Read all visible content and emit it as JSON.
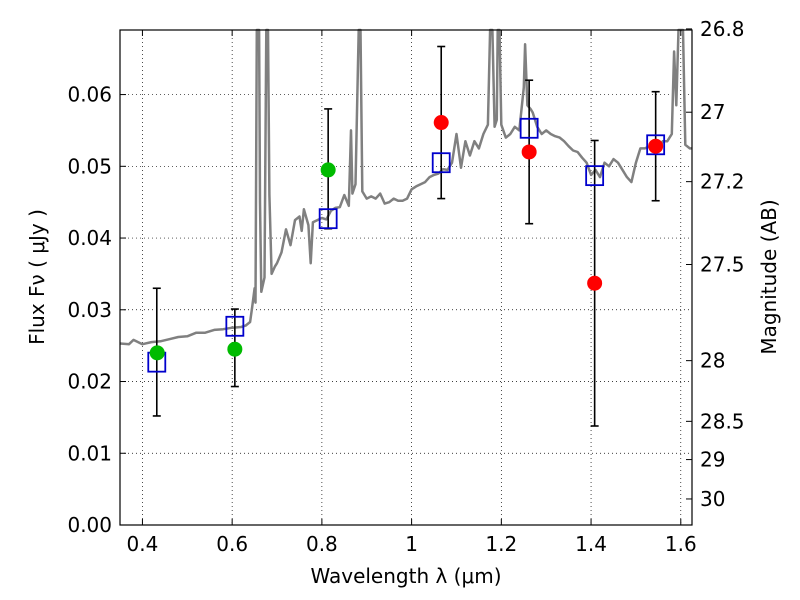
{
  "chart_data": {
    "type": "scatter",
    "xlabel": "Wavelength  λ (μm)",
    "ylabel": "Flux  Fν  ( μJy )",
    "ylabel_right": "Magnitude (AB)",
    "xlim": [
      0.35,
      1.625
    ],
    "ylim": [
      0.0,
      0.069
    ],
    "grid": true,
    "x_ticks": [
      0.4,
      0.6,
      0.8,
      1.0,
      1.2,
      1.4,
      1.6
    ],
    "x_tick_labels": [
      "0.4",
      "0.6",
      "0.8",
      "1",
      "1.2",
      "1.4",
      "1.6"
    ],
    "y_ticks": [
      0.0,
      0.01,
      0.02,
      0.03,
      0.04,
      0.05,
      0.06
    ],
    "y_tick_labels": [
      "0.00",
      "0.01",
      "0.02",
      "0.03",
      "0.04",
      "0.05",
      "0.06"
    ],
    "right_ticks": [
      {
        "flux": 0.06915,
        "label": "26.8"
      },
      {
        "flux": 0.05754,
        "label": "27"
      },
      {
        "flux": 0.04786,
        "label": "27.2"
      },
      {
        "flux": 0.03631,
        "label": "27.5"
      },
      {
        "flux": 0.02291,
        "label": "28"
      },
      {
        "flux": 0.01445,
        "label": "28.5"
      },
      {
        "flux": 0.00912,
        "label": "29"
      },
      {
        "flux": 0.00363,
        "label": "30"
      }
    ],
    "series": [
      {
        "kind": "spectrum",
        "color": "#808080",
        "points": [
          [
            0.35,
            0.0253
          ],
          [
            0.37,
            0.0252
          ],
          [
            0.38,
            0.0258
          ],
          [
            0.4,
            0.0252
          ],
          [
            0.42,
            0.0255
          ],
          [
            0.44,
            0.0256
          ],
          [
            0.46,
            0.0259
          ],
          [
            0.48,
            0.0262
          ],
          [
            0.5,
            0.0263
          ],
          [
            0.52,
            0.0268
          ],
          [
            0.54,
            0.0268
          ],
          [
            0.56,
            0.0272
          ],
          [
            0.58,
            0.0273
          ],
          [
            0.6,
            0.0275
          ],
          [
            0.62,
            0.0276
          ],
          [
            0.63,
            0.0278
          ],
          [
            0.64,
            0.0283
          ],
          [
            0.645,
            0.0305
          ],
          [
            0.65,
            0.033
          ],
          [
            0.652,
            0.031
          ],
          [
            0.655,
            0.069
          ],
          [
            0.66,
            0.069
          ],
          [
            0.662,
            0.045
          ],
          [
            0.665,
            0.0325
          ],
          [
            0.672,
            0.0345
          ],
          [
            0.676,
            0.069
          ],
          [
            0.68,
            0.069
          ],
          [
            0.683,
            0.046
          ],
          [
            0.688,
            0.035
          ],
          [
            0.695,
            0.036
          ],
          [
            0.7,
            0.0365
          ],
          [
            0.71,
            0.038
          ],
          [
            0.72,
            0.0412
          ],
          [
            0.73,
            0.039
          ],
          [
            0.74,
            0.0425
          ],
          [
            0.75,
            0.043
          ],
          [
            0.755,
            0.041
          ],
          [
            0.76,
            0.044
          ],
          [
            0.77,
            0.0418
          ],
          [
            0.775,
            0.0365
          ],
          [
            0.78,
            0.0422
          ],
          [
            0.79,
            0.0425
          ],
          [
            0.8,
            0.0428
          ],
          [
            0.81,
            0.0426
          ],
          [
            0.82,
            0.0438
          ],
          [
            0.83,
            0.0442
          ],
          [
            0.84,
            0.0443
          ],
          [
            0.85,
            0.046
          ],
          [
            0.86,
            0.0445
          ],
          [
            0.865,
            0.055
          ],
          [
            0.868,
            0.0462
          ],
          [
            0.875,
            0.0475
          ],
          [
            0.882,
            0.069
          ],
          [
            0.886,
            0.069
          ],
          [
            0.89,
            0.0465
          ],
          [
            0.9,
            0.0455
          ],
          [
            0.91,
            0.0458
          ],
          [
            0.92,
            0.0455
          ],
          [
            0.93,
            0.0462
          ],
          [
            0.94,
            0.0448
          ],
          [
            0.95,
            0.045
          ],
          [
            0.96,
            0.0455
          ],
          [
            0.97,
            0.0452
          ],
          [
            0.98,
            0.0452
          ],
          [
            0.99,
            0.0455
          ],
          [
            1.0,
            0.0468
          ],
          [
            1.01,
            0.0472
          ],
          [
            1.02,
            0.0475
          ],
          [
            1.03,
            0.0478
          ],
          [
            1.04,
            0.0485
          ],
          [
            1.05,
            0.0488
          ],
          [
            1.06,
            0.049
          ],
          [
            1.07,
            0.0496
          ],
          [
            1.08,
            0.0495
          ],
          [
            1.09,
            0.0505
          ],
          [
            1.1,
            0.0545
          ],
          [
            1.11,
            0.0498
          ],
          [
            1.12,
            0.0535
          ],
          [
            1.13,
            0.0515
          ],
          [
            1.14,
            0.0535
          ],
          [
            1.15,
            0.0525
          ],
          [
            1.16,
            0.0545
          ],
          [
            1.17,
            0.0558
          ],
          [
            1.175,
            0.069
          ],
          [
            1.18,
            0.069
          ],
          [
            1.185,
            0.0555
          ],
          [
            1.19,
            0.0565
          ],
          [
            1.192,
            0.069
          ],
          [
            1.196,
            0.069
          ],
          [
            1.2,
            0.0558
          ],
          [
            1.21,
            0.054
          ],
          [
            1.22,
            0.0545
          ],
          [
            1.23,
            0.0555
          ],
          [
            1.24,
            0.055
          ],
          [
            1.25,
            0.061
          ],
          [
            1.253,
            0.067
          ],
          [
            1.258,
            0.0585
          ],
          [
            1.265,
            0.058
          ],
          [
            1.27,
            0.0575
          ],
          [
            1.28,
            0.0555
          ],
          [
            1.29,
            0.0545
          ],
          [
            1.3,
            0.055
          ],
          [
            1.31,
            0.0545
          ],
          [
            1.32,
            0.0542
          ],
          [
            1.33,
            0.054
          ],
          [
            1.34,
            0.0535
          ],
          [
            1.35,
            0.0528
          ],
          [
            1.36,
            0.0522
          ],
          [
            1.37,
            0.052
          ],
          [
            1.38,
            0.0512
          ],
          [
            1.39,
            0.0505
          ],
          [
            1.4,
            0.0488
          ],
          [
            1.41,
            0.0495
          ],
          [
            1.42,
            0.0485
          ],
          [
            1.43,
            0.0505
          ],
          [
            1.44,
            0.05
          ],
          [
            1.45,
            0.051
          ],
          [
            1.46,
            0.0505
          ],
          [
            1.47,
            0.0495
          ],
          [
            1.48,
            0.0485
          ],
          [
            1.49,
            0.0478
          ],
          [
            1.5,
            0.0505
          ],
          [
            1.51,
            0.0525
          ],
          [
            1.52,
            0.0525
          ],
          [
            1.53,
            0.0528
          ],
          [
            1.54,
            0.0525
          ],
          [
            1.55,
            0.0522
          ],
          [
            1.56,
            0.0535
          ],
          [
            1.57,
            0.0535
          ],
          [
            1.58,
            0.0545
          ],
          [
            1.585,
            0.066
          ],
          [
            1.59,
            0.0585
          ],
          [
            1.595,
            0.069
          ],
          [
            1.605,
            0.069
          ],
          [
            1.61,
            0.053
          ],
          [
            1.62,
            0.0525
          ],
          [
            1.625,
            0.0525
          ]
        ]
      },
      {
        "kind": "error_bars",
        "color": "#000000",
        "bars": [
          {
            "x": 0.432,
            "low": 0.0152,
            "high": 0.033
          },
          {
            "x": 0.606,
            "low": 0.0193,
            "high": 0.0301
          },
          {
            "x": 0.814,
            "low": 0.0413,
            "high": 0.058
          },
          {
            "x": 1.066,
            "low": 0.0455,
            "high": 0.0667
          },
          {
            "x": 1.262,
            "low": 0.042,
            "high": 0.062
          },
          {
            "x": 1.408,
            "low": 0.0138,
            "high": 0.0536
          },
          {
            "x": 1.544,
            "low": 0.0452,
            "high": 0.0604
          }
        ]
      },
      {
        "kind": "green_points",
        "color": "#00bb00",
        "x": [
          0.433,
          0.606,
          0.814
        ],
        "y": [
          0.024,
          0.0245,
          0.0495
        ]
      },
      {
        "kind": "red_points",
        "color": "#ff0000",
        "x": [
          1.066,
          1.262,
          1.408,
          1.544
        ],
        "y": [
          0.0561,
          0.052,
          0.0337,
          0.0528
        ]
      },
      {
        "kind": "blue_squares",
        "color": "#0000cc",
        "x": [
          0.432,
          0.606,
          0.814,
          1.066,
          1.262,
          1.408,
          1.544
        ],
        "y": [
          0.0227,
          0.0277,
          0.0427,
          0.0505,
          0.0553,
          0.0487,
          0.053
        ]
      }
    ]
  }
}
